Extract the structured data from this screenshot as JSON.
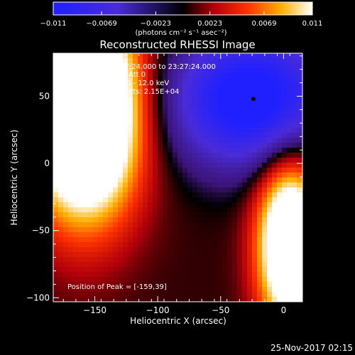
{
  "chart_data": {
    "type": "heatmap",
    "title": "Reconstructed RHESSI Image",
    "xlabel": "Heliocentric X (arcsec)",
    "ylabel": "Heliocentric Y (arcsec)",
    "xlim": [
      -183,
      15
    ],
    "ylim": [
      -103,
      82
    ],
    "xticks": [
      -150,
      -100,
      -50,
      0
    ],
    "xtick_labels": [
      "−150",
      "−100",
      "−50",
      "0"
    ],
    "yticks": [
      50,
      0,
      -50,
      -100
    ],
    "ytick_labels": [
      "50",
      "0",
      "−50",
      "−100"
    ],
    "colorbar": {
      "min": -0.011,
      "max": 0.011,
      "ticks": [
        -0.011,
        -0.0069,
        -0.0023,
        0.0023,
        0.0069,
        0.011
      ],
      "tick_labels": [
        "−0.011",
        "−0.0069",
        "−0.0023",
        "0.0023",
        "0.0069",
        "0.011"
      ],
      "unit_label": "(photons cm⁻² s⁻¹ asec⁻²)"
    },
    "annotations": [
      "5-Sep-2016 23:17:24.000 to 23:27:24.000",
      "Detectors: 3F 8F, Att 0",
      "Energy Range: 6.0 - 12.0 keV",
      "Clean     Total counts: 2.15E+04"
    ],
    "peak_label": "Position of Peak = [-159,39]",
    "peak_position": [
      -159,
      39
    ],
    "marker_position": [
      -24,
      48
    ],
    "sources": [
      {
        "x": -158,
        "y": 40,
        "sx": 30,
        "sy": 55,
        "amp": 0.024
      },
      {
        "x": 5,
        "y": -60,
        "sx": 18,
        "sy": 45,
        "amp": 0.018
      },
      {
        "x": -25,
        "y": 48,
        "sx": 45,
        "sy": 35,
        "amp": -0.014
      }
    ],
    "background": 0.0007,
    "grid": false
  },
  "footer": {
    "timestamp": "25-Nov-2017 02:15"
  }
}
